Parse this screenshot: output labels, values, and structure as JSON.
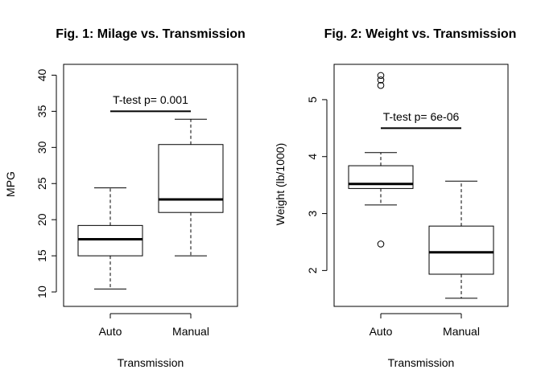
{
  "chart_data": [
    {
      "type": "boxplot",
      "title": "Fig. 1: Milage vs. Transmission",
      "xlabel": "Transmission",
      "ylabel": "MPG",
      "ylim": [
        8,
        41.5
      ],
      "yticks": [
        10,
        15,
        20,
        25,
        30,
        35,
        40
      ],
      "categories": [
        "Auto",
        "Manual"
      ],
      "boxes": [
        {
          "category": "Auto",
          "whisker_low": 10.4,
          "q1": 15.0,
          "median": 17.3,
          "q3": 19.2,
          "whisker_high": 24.4,
          "outliers": []
        },
        {
          "category": "Manual",
          "whisker_low": 15.0,
          "q1": 21.0,
          "median": 22.8,
          "q3": 30.4,
          "whisker_high": 33.9,
          "outliers": []
        }
      ],
      "annotation": {
        "text": "T-test p= 0.001",
        "y": 36.6,
        "bar_y": 35.0
      }
    },
    {
      "type": "boxplot",
      "title": "Fig. 2: Weight vs. Transmission",
      "xlabel": "Transmission",
      "ylabel": "Weight (lb/1000)",
      "ylim": [
        1.37,
        5.62
      ],
      "yticks": [
        2,
        3,
        4,
        5
      ],
      "categories": [
        "Auto",
        "Manual"
      ],
      "boxes": [
        {
          "category": "Auto",
          "whisker_low": 3.15,
          "q1": 3.44,
          "median": 3.52,
          "q3": 3.84,
          "whisker_high": 4.07,
          "outliers": [
            5.25,
            5.345,
            5.424,
            2.465
          ]
        },
        {
          "category": "Manual",
          "whisker_low": 1.513,
          "q1": 1.935,
          "median": 2.32,
          "q3": 2.78,
          "whisker_high": 3.57,
          "outliers": []
        }
      ],
      "annotation": {
        "text": "T-test p= 6e-06",
        "y": 4.7,
        "bar_y": 4.5
      }
    }
  ]
}
